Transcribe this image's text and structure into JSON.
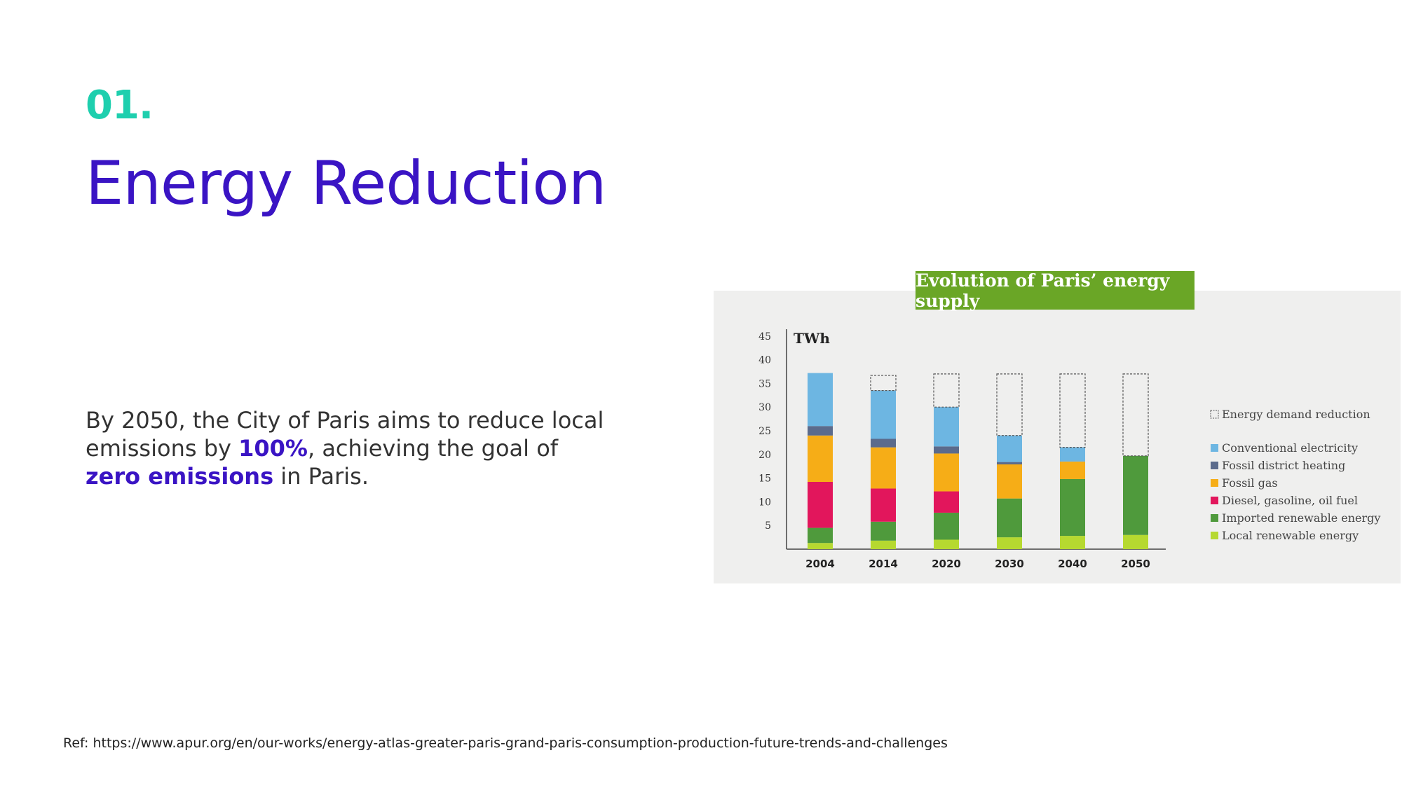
{
  "section": {
    "number": "01."
  },
  "page": {
    "title": "Energy Reduction"
  },
  "body": {
    "t1": "By 2050, the City of Paris aims to reduce local emissions by ",
    "h1": "100%",
    "t2": ", achieving the goal of ",
    "h2": "zero emissions",
    "t3": " in Paris."
  },
  "reference": "Ref: https://www.apur.org/en/our-works/energy-atlas-greater-paris-grand-paris-consumption-production-future-trends-and-challenges",
  "chart_data": {
    "type": "bar",
    "stacked": true,
    "title": "Evolution of Paris’ energy supply",
    "ylabel": "TWh",
    "xlabel": "",
    "ylim": [
      0,
      45
    ],
    "yticks": [
      5,
      10,
      15,
      20,
      25,
      30,
      35,
      40,
      45
    ],
    "grid": false,
    "legend_position": "right",
    "categories": [
      "2004",
      "2014",
      "2020",
      "2030",
      "2040",
      "2050"
    ],
    "series": [
      {
        "name": "Local renewable energy",
        "color": "#b6d930",
        "values": [
          1.3,
          1.8,
          2.0,
          2.5,
          2.8,
          3.0
        ]
      },
      {
        "name": "Imported renewable energy",
        "color": "#4f9a3c",
        "values": [
          3.2,
          4.0,
          5.7,
          8.2,
          12.0,
          16.7
        ]
      },
      {
        "name": "Diesel, gasoline, oil fuel",
        "color": "#e2165c",
        "values": [
          9.7,
          7.0,
          4.5,
          0,
          0,
          0
        ]
      },
      {
        "name": "Fossil gas",
        "color": "#f6ad17",
        "values": [
          9.8,
          8.7,
          8.0,
          7.2,
          3.7,
          0
        ]
      },
      {
        "name": "Fossil district heating",
        "color": "#5b6b8c",
        "values": [
          2.0,
          1.8,
          1.5,
          0.5,
          0,
          0
        ]
      },
      {
        "name": "Conventional electricity",
        "color": "#6db6e2",
        "values": [
          11.2,
          10.2,
          8.3,
          5.6,
          3.0,
          0
        ]
      },
      {
        "name": "Energy demand reduction",
        "color": "none",
        "dashed": true,
        "values": [
          0,
          3.2,
          7.0,
          13.0,
          15.5,
          17.3
        ]
      }
    ],
    "legend_order": [
      "Energy demand reduction",
      "Conventional electricity",
      "Fossil district heating",
      "Fossil gas",
      "Diesel, gasoline, oil fuel",
      "Imported renewable energy",
      "Local renewable energy"
    ]
  }
}
